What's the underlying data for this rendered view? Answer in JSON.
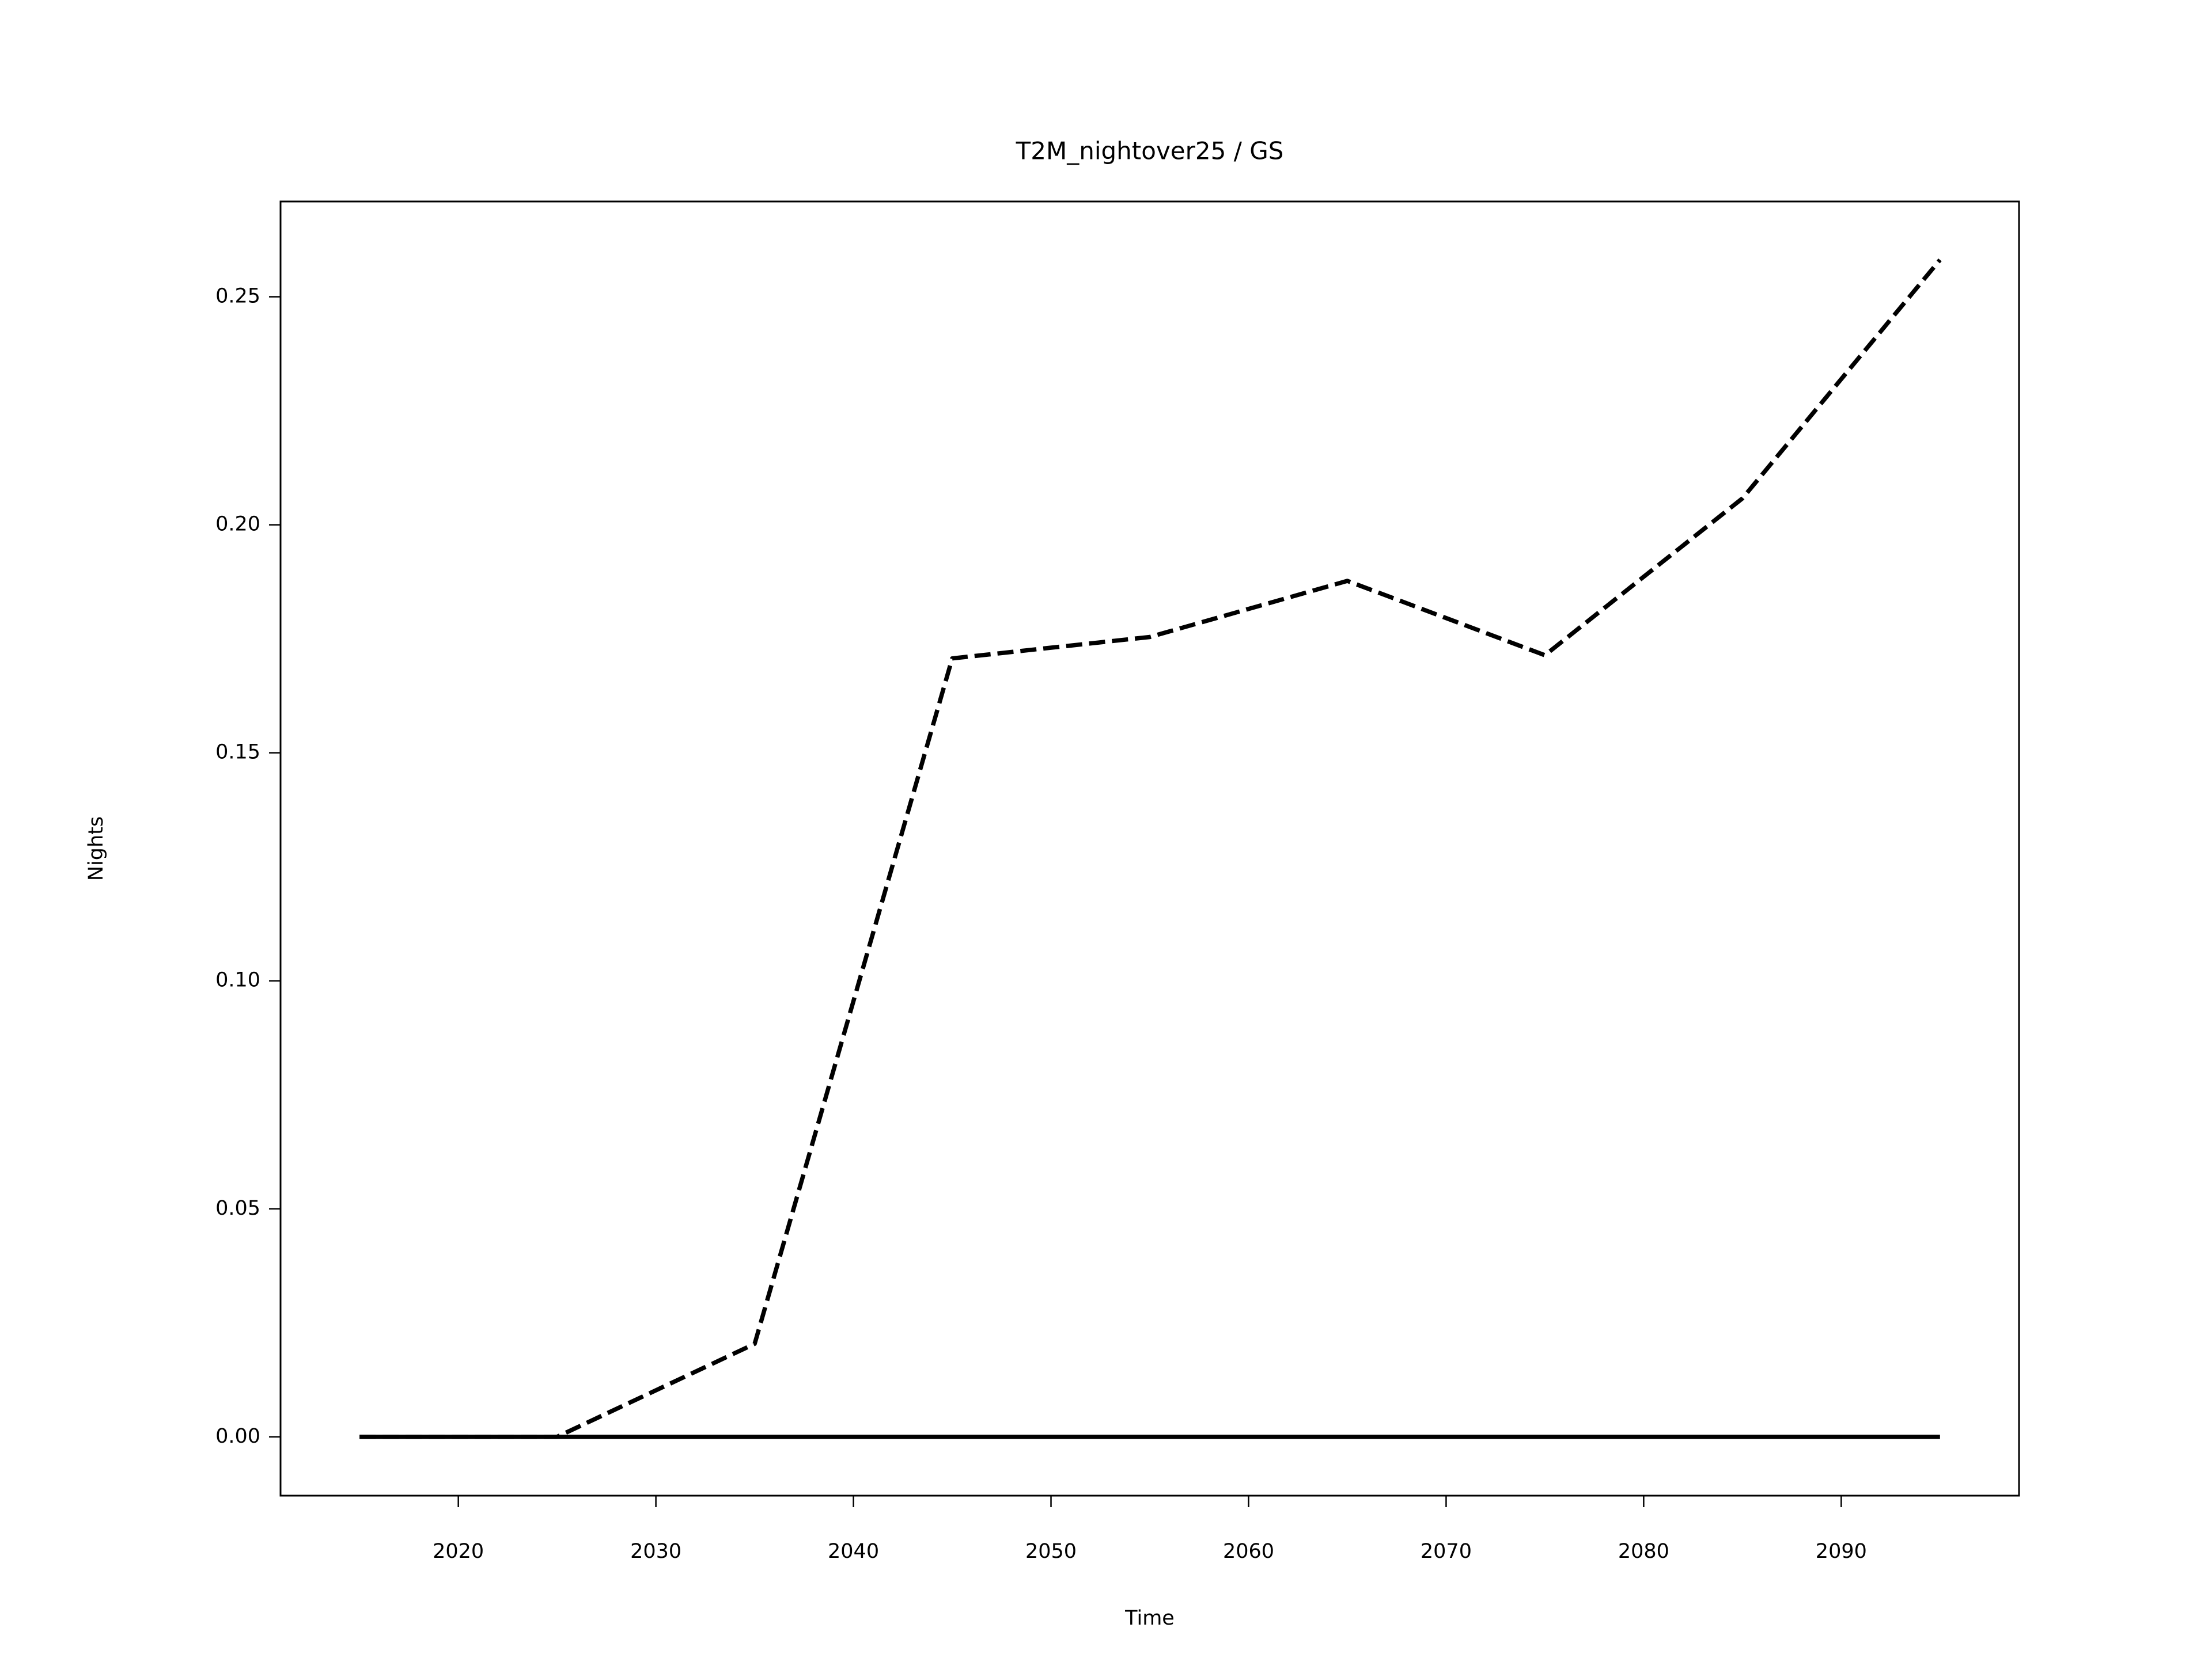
{
  "chart_data": {
    "type": "line",
    "title": "T2M_nightover25 / GS",
    "x_label": "Time",
    "y_label": "Nights",
    "x": [
      2015,
      2025,
      2035,
      2045,
      2055,
      2065,
      2075,
      2085,
      2095
    ],
    "series": [
      {
        "color": "#000000",
        "dash": true,
        "values": [
          0,
          0,
          0.0204,
          0.1707,
          0.1754,
          0.1877,
          0.1714,
          0.2058,
          0.2581
        ]
      },
      {
        "color": "#000000",
        "dash": false,
        "values": [
          0,
          0,
          0,
          0,
          0,
          0,
          0,
          0,
          0
        ]
      }
    ],
    "xlim": [
      2011,
      2099
    ],
    "xticks": [
      2020,
      2030,
      2040,
      2050,
      2060,
      2070,
      2080,
      2090
    ],
    "ylim": [
      -0.0129,
      0.2709
    ],
    "yticks": [
      {
        "value": 0,
        "label": "0.00"
      },
      {
        "value": 0.05,
        "label": "0.05"
      },
      {
        "value": 0.1,
        "label": "0.10"
      },
      {
        "value": 0.15,
        "label": "0.15"
      },
      {
        "value": 0.2,
        "label": "0.20"
      },
      {
        "value": 0.25,
        "label": "0.25"
      }
    ],
    "grid": false
  }
}
